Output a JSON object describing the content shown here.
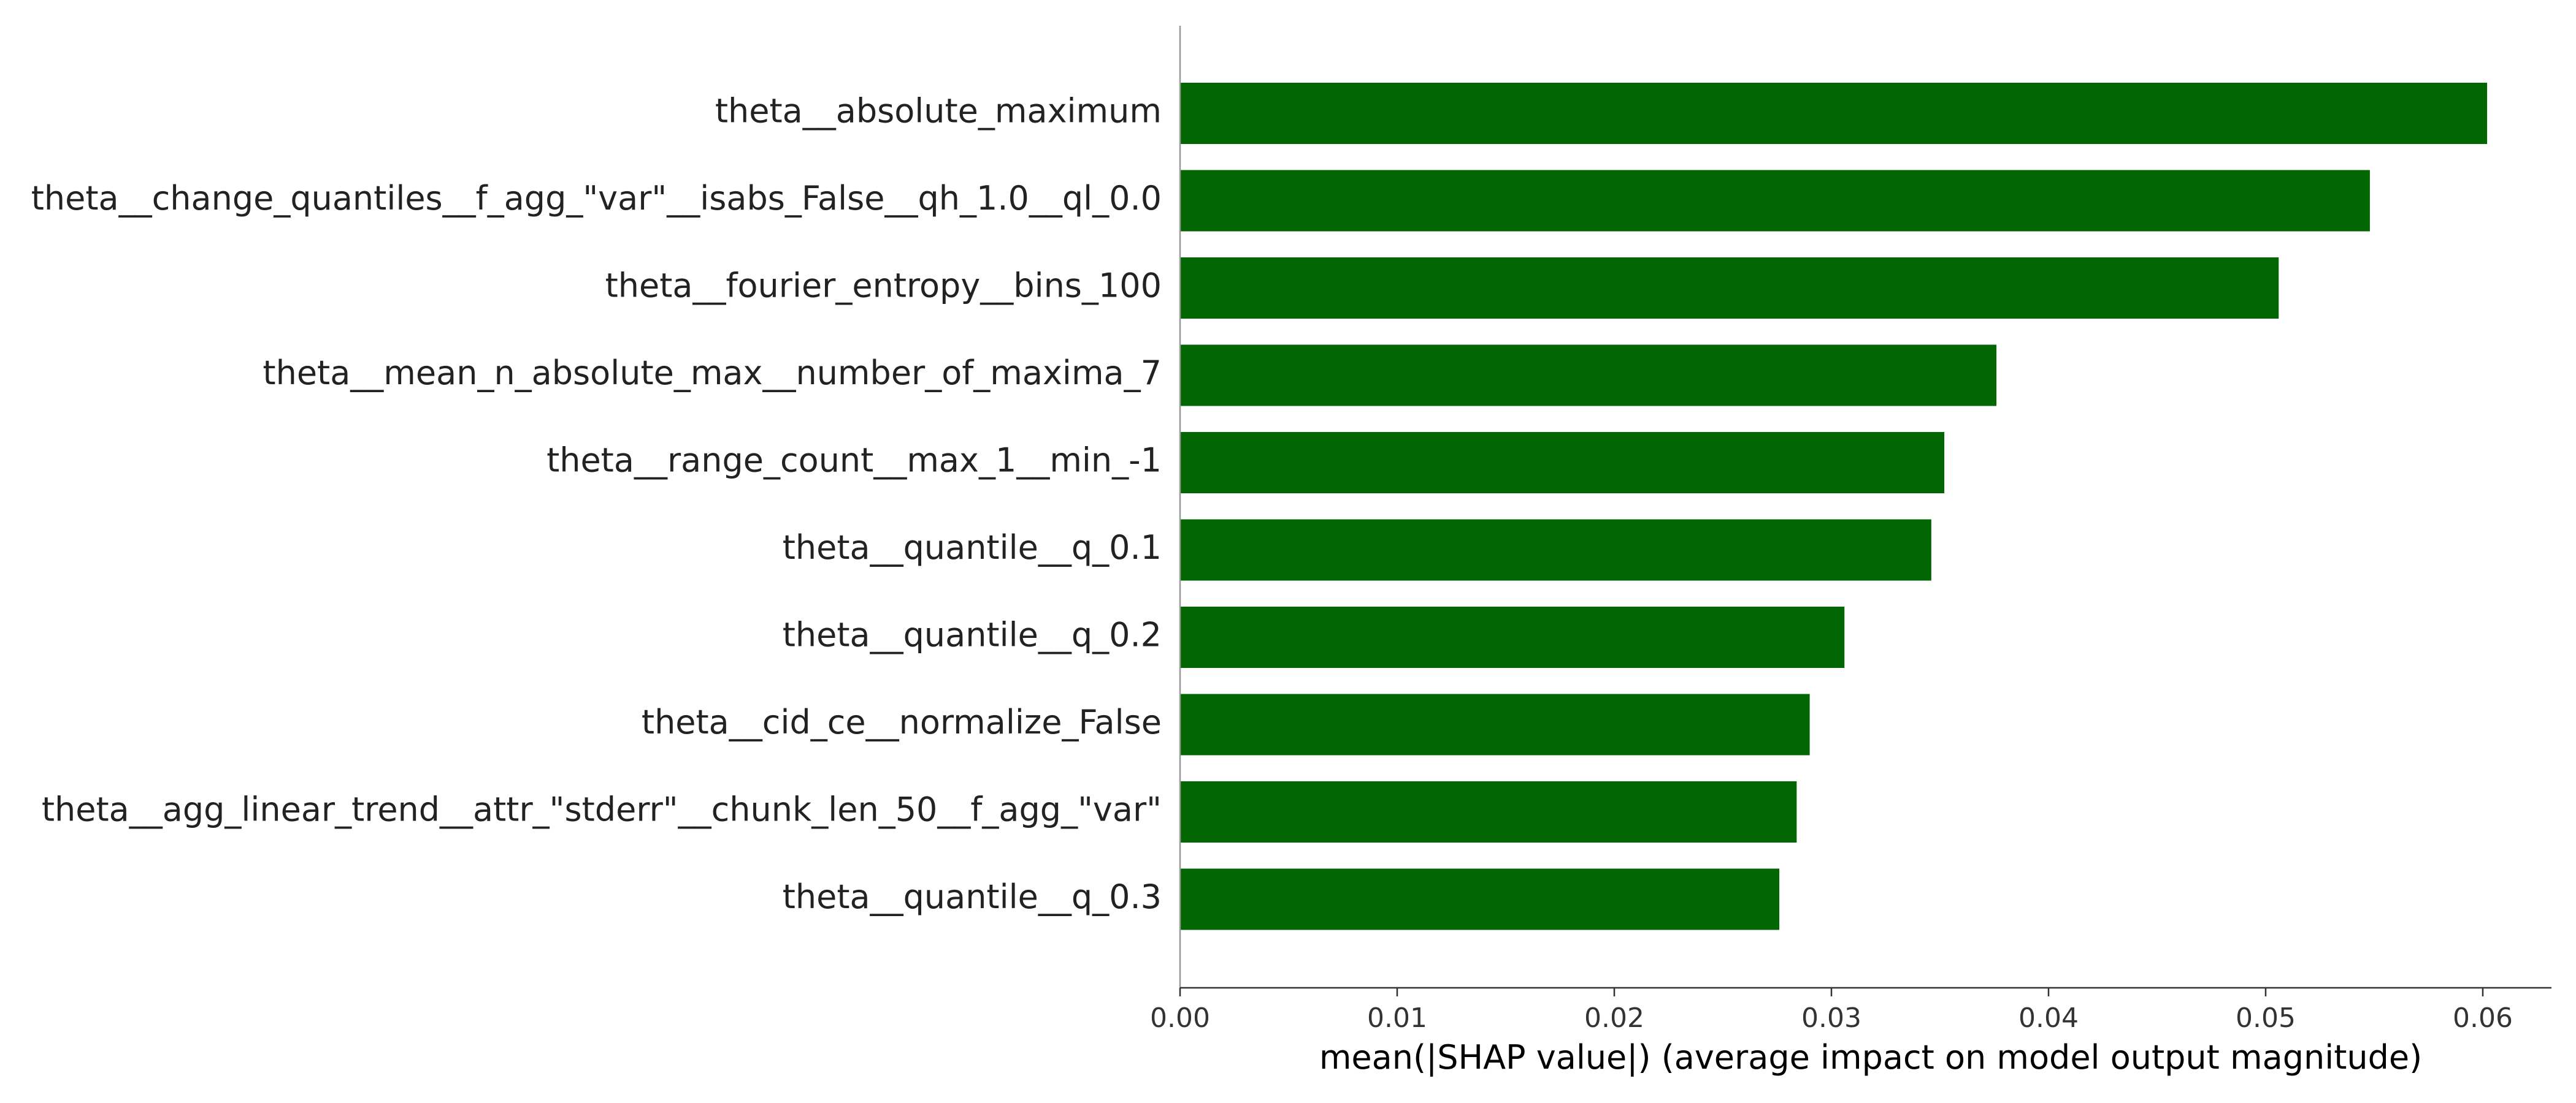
{
  "chart_data": {
    "type": "bar",
    "orientation": "horizontal",
    "title": "",
    "xlabel": "mean(|SHAP value|) (average impact on model output magnitude)",
    "ylabel": "",
    "xlim": [
      0,
      0.0632
    ],
    "xticks": [
      "0.00",
      "0.01",
      "0.02",
      "0.03",
      "0.04",
      "0.05",
      "0.06"
    ],
    "grid": false,
    "bar_color": "#026702",
    "categories": [
      "theta__absolute_maximum",
      "theta__change_quantiles__f_agg_\"var\"__isabs_False__qh_1.0__ql_0.0",
      "theta__fourier_entropy__bins_100",
      "theta__mean_n_absolute_max__number_of_maxima_7",
      "theta__range_count__max_1__min_-1",
      "theta__quantile__q_0.1",
      "theta__quantile__q_0.2",
      "theta__cid_ce__normalize_False",
      "theta__agg_linear_trend__attr_\"stderr\"__chunk_len_50__f_agg_\"var\"",
      "theta__quantile__q_0.3"
    ],
    "values": [
      0.0602,
      0.0548,
      0.0506,
      0.0376,
      0.0352,
      0.0346,
      0.0306,
      0.029,
      0.0284,
      0.0276
    ]
  }
}
